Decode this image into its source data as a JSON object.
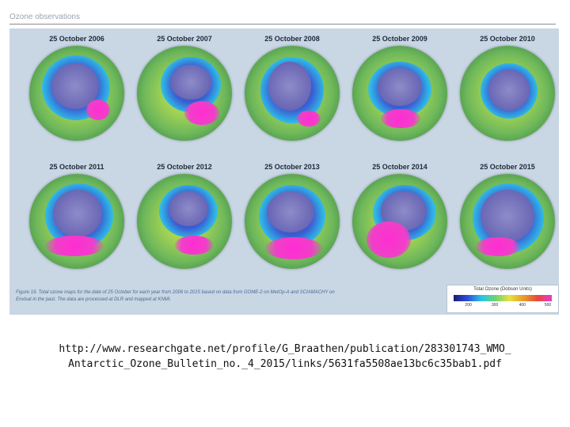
{
  "slide": {
    "title": "Ozone observations"
  },
  "figure": {
    "maps": [
      {
        "label": "25 October 2006"
      },
      {
        "label": "25 October 2007"
      },
      {
        "label": "25 October 2008"
      },
      {
        "label": "25 October 2009"
      },
      {
        "label": "25 October 2010"
      },
      {
        "label": "25 October 2011"
      },
      {
        "label": "25 October 2012"
      },
      {
        "label": "25 October 2013"
      },
      {
        "label": "25 October 2014"
      },
      {
        "label": "25 October 2015"
      }
    ],
    "caption_line1": "Figure 19. Total ozone maps for the date of 25 October for each year from 2006 to 2015 based on data from GOME-2 on MetOp-A and SCIAMACHY on",
    "caption_line2": "Envisat in the past. The data are processed at DLR and mapped at KNMI.",
    "legend": {
      "title": "Total Ozone (Dobson Units)",
      "ticks": [
        "200",
        "300",
        "400",
        "500"
      ],
      "colors": [
        "#1a1a7a",
        "#2f4fd8",
        "#26c6e8",
        "#6fd36f",
        "#e6e23a",
        "#e89a2a",
        "#e8483a",
        "#e83ad0"
      ]
    }
  },
  "source": {
    "line1": "http://www.researchgate.net/profile/G_Braathen/publication/283301743_WMO_",
    "line2": "Antarctic_Ozone_Bulletin_no._4_2015/links/5631fa5508ae13bc6c35bab1.pdf"
  }
}
